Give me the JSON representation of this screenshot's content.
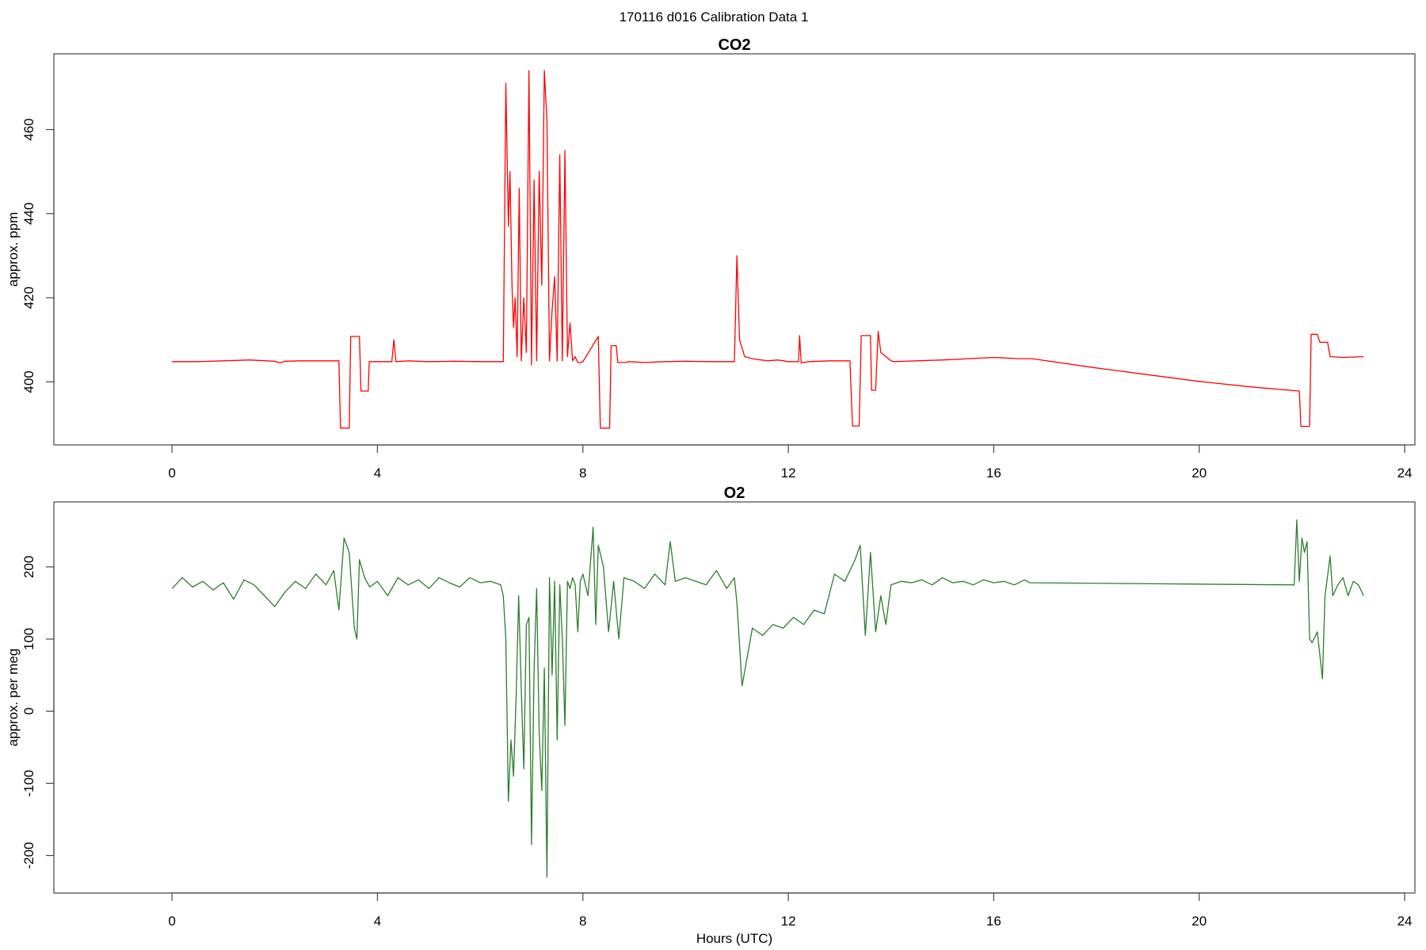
{
  "figure": {
    "title": "170116   d016   Calibration Data 1"
  },
  "chart_data": [
    {
      "type": "line",
      "title": "CO2",
      "xlabel": "",
      "ylabel": "approx. ppm",
      "xlim": [
        -2.3,
        24.2
      ],
      "ylim": [
        385,
        478
      ],
      "xticks": [
        0,
        4,
        8,
        12,
        16,
        20,
        24
      ],
      "xtick_labels": [
        "0",
        "4",
        "8",
        "12",
        "16",
        "20",
        "24"
      ],
      "yticks": [
        400,
        420,
        440,
        460
      ],
      "ytick_labels": [
        "400",
        "420",
        "440",
        "460"
      ],
      "grid": false,
      "series": [
        {
          "color": "#ff0000",
          "x": [
            0,
            0.5,
            1.0,
            1.5,
            2.0,
            2.1,
            2.2,
            2.5,
            3.0,
            3.25,
            3.28,
            3.45,
            3.48,
            3.65,
            3.68,
            3.82,
            3.84,
            4.0,
            4.28,
            4.32,
            4.36,
            4.6,
            5.0,
            5.5,
            6.0,
            6.45,
            6.5,
            6.55,
            6.58,
            6.62,
            6.65,
            6.68,
            6.72,
            6.76,
            6.8,
            6.85,
            6.9,
            6.95,
            7.0,
            7.05,
            7.1,
            7.15,
            7.2,
            7.25,
            7.3,
            7.35,
            7.4,
            7.45,
            7.5,
            7.55,
            7.6,
            7.65,
            7.7,
            7.75,
            7.8,
            7.85,
            7.9,
            7.95,
            8.0,
            8.3,
            8.34,
            8.52,
            8.55,
            8.65,
            8.68,
            8.85,
            8.88,
            9.2,
            9.6,
            10.0,
            10.5,
            10.95,
            11.0,
            11.05,
            11.15,
            11.3,
            11.6,
            11.8,
            12.0,
            12.2,
            12.22,
            12.25,
            12.4,
            12.8,
            13.2,
            13.25,
            13.38,
            13.42,
            13.6,
            13.62,
            13.7,
            13.75,
            13.8,
            13.85,
            13.9,
            14.0,
            14.05,
            14.5,
            15.0,
            15.5,
            16.0,
            16.5,
            16.75,
            18.0,
            19.0,
            20.0,
            21.0,
            21.95,
            21.98,
            22.15,
            22.18,
            22.3,
            22.35,
            22.5,
            22.55,
            22.8,
            23.2
          ],
          "values": [
            404.8,
            404.8,
            405.0,
            405.2,
            404.9,
            404.5,
            404.9,
            405.0,
            405.0,
            405.0,
            389.0,
            389.0,
            410.8,
            410.8,
            397.8,
            397.8,
            404.8,
            404.8,
            404.8,
            410.0,
            404.8,
            405.0,
            404.8,
            404.9,
            404.8,
            404.8,
            471.0,
            437.0,
            450.0,
            423.0,
            413.0,
            420.0,
            406.0,
            446.0,
            405.0,
            420.0,
            407.0,
            474.0,
            404.0,
            448.0,
            405.0,
            450.0,
            423.0,
            474.0,
            462.0,
            405.0,
            417.0,
            425.0,
            405.0,
            454.0,
            405.0,
            455.0,
            406.0,
            414.0,
            405.0,
            406.0,
            404.6,
            404.6,
            404.8,
            410.8,
            389.0,
            389.0,
            408.6,
            408.6,
            404.6,
            404.6,
            404.8,
            404.6,
            404.8,
            404.9,
            404.8,
            404.8,
            430.0,
            410.0,
            406.0,
            405.5,
            405.0,
            405.2,
            404.8,
            404.8,
            411.0,
            404.5,
            404.8,
            405.0,
            405.0,
            389.5,
            389.5,
            411.0,
            411.0,
            398.0,
            398.0,
            412.0,
            407.0,
            406.5,
            406.0,
            405.0,
            404.8,
            405.0,
            405.2,
            405.5,
            405.8,
            405.5,
            405.5,
            403.3,
            401.7,
            400.1,
            398.8,
            397.8,
            389.4,
            389.4,
            411.3,
            411.3,
            409.4,
            409.4,
            406.0,
            405.8,
            406.0
          ]
        }
      ]
    },
    {
      "type": "line",
      "title": "O2",
      "xlabel": "Hours (UTC)",
      "ylabel": "approx. per meg",
      "xlim": [
        -2.3,
        24.2
      ],
      "ylim": [
        -252,
        290
      ],
      "xticks": [
        0,
        4,
        8,
        12,
        16,
        20,
        24
      ],
      "xtick_labels": [
        "0",
        "4",
        "8",
        "12",
        "16",
        "20",
        "24"
      ],
      "yticks": [
        -200,
        -100,
        0,
        100,
        200
      ],
      "ytick_labels": [
        "-200",
        "-100",
        "0",
        "100",
        "200"
      ],
      "grid": false,
      "series": [
        {
          "color": "#2d7d2d",
          "x": [
            0,
            0.2,
            0.4,
            0.6,
            0.8,
            1.0,
            1.2,
            1.4,
            1.6,
            1.8,
            2.0,
            2.2,
            2.4,
            2.6,
            2.8,
            3.0,
            3.15,
            3.25,
            3.35,
            3.45,
            3.55,
            3.6,
            3.65,
            3.75,
            3.85,
            4.0,
            4.2,
            4.4,
            4.6,
            4.8,
            5.0,
            5.2,
            5.4,
            5.6,
            5.8,
            6.0,
            6.2,
            6.4,
            6.45,
            6.5,
            6.55,
            6.6,
            6.65,
            6.7,
            6.75,
            6.8,
            6.85,
            6.9,
            6.95,
            7.0,
            7.05,
            7.1,
            7.15,
            7.2,
            7.25,
            7.3,
            7.35,
            7.4,
            7.45,
            7.5,
            7.55,
            7.6,
            7.65,
            7.7,
            7.75,
            7.8,
            7.85,
            7.9,
            7.95,
            8.0,
            8.1,
            8.2,
            8.25,
            8.3,
            8.4,
            8.5,
            8.6,
            8.7,
            8.8,
            9.0,
            9.2,
            9.4,
            9.6,
            9.7,
            9.8,
            10.0,
            10.2,
            10.4,
            10.6,
            10.8,
            10.95,
            11.0,
            11.1,
            11.3,
            11.5,
            11.7,
            11.9,
            12.1,
            12.3,
            12.5,
            12.7,
            12.9,
            13.1,
            13.3,
            13.4,
            13.5,
            13.6,
            13.7,
            13.8,
            13.9,
            14.0,
            14.2,
            14.4,
            14.6,
            14.8,
            15.0,
            15.2,
            15.4,
            15.6,
            15.8,
            16.0,
            16.2,
            16.4,
            16.6,
            16.7,
            21.85,
            21.9,
            21.95,
            22.0,
            22.05,
            22.1,
            22.15,
            22.2,
            22.3,
            22.4,
            22.45,
            22.55,
            22.6,
            22.7,
            22.8,
            22.9,
            23.0,
            23.1,
            23.2
          ],
          "values": [
            170,
            185,
            172,
            180,
            168,
            178,
            155,
            182,
            175,
            160,
            145,
            165,
            180,
            170,
            190,
            175,
            195,
            140,
            240,
            220,
            115,
            100,
            210,
            185,
            172,
            180,
            160,
            185,
            175,
            182,
            170,
            185,
            178,
            172,
            185,
            178,
            180,
            175,
            160,
            100,
            -125,
            -40,
            -90,
            20,
            160,
            30,
            -80,
            120,
            130,
            -185,
            60,
            170,
            -30,
            -110,
            60,
            -230,
            185,
            50,
            180,
            -40,
            175,
            100,
            -20,
            180,
            170,
            185,
            175,
            110,
            180,
            190,
            160,
            255,
            120,
            230,
            200,
            110,
            180,
            100,
            185,
            180,
            170,
            190,
            175,
            235,
            180,
            185,
            180,
            175,
            195,
            170,
            185,
            150,
            35,
            115,
            105,
            120,
            115,
            130,
            120,
            140,
            135,
            190,
            180,
            210,
            230,
            105,
            220,
            110,
            160,
            120,
            175,
            180,
            178,
            182,
            175,
            185,
            178,
            180,
            175,
            182,
            178,
            180,
            175,
            182,
            178,
            175,
            265,
            180,
            240,
            220,
            235,
            100,
            95,
            110,
            45,
            160,
            215,
            160,
            175,
            185,
            160,
            180,
            175,
            160
          ]
        }
      ]
    }
  ]
}
